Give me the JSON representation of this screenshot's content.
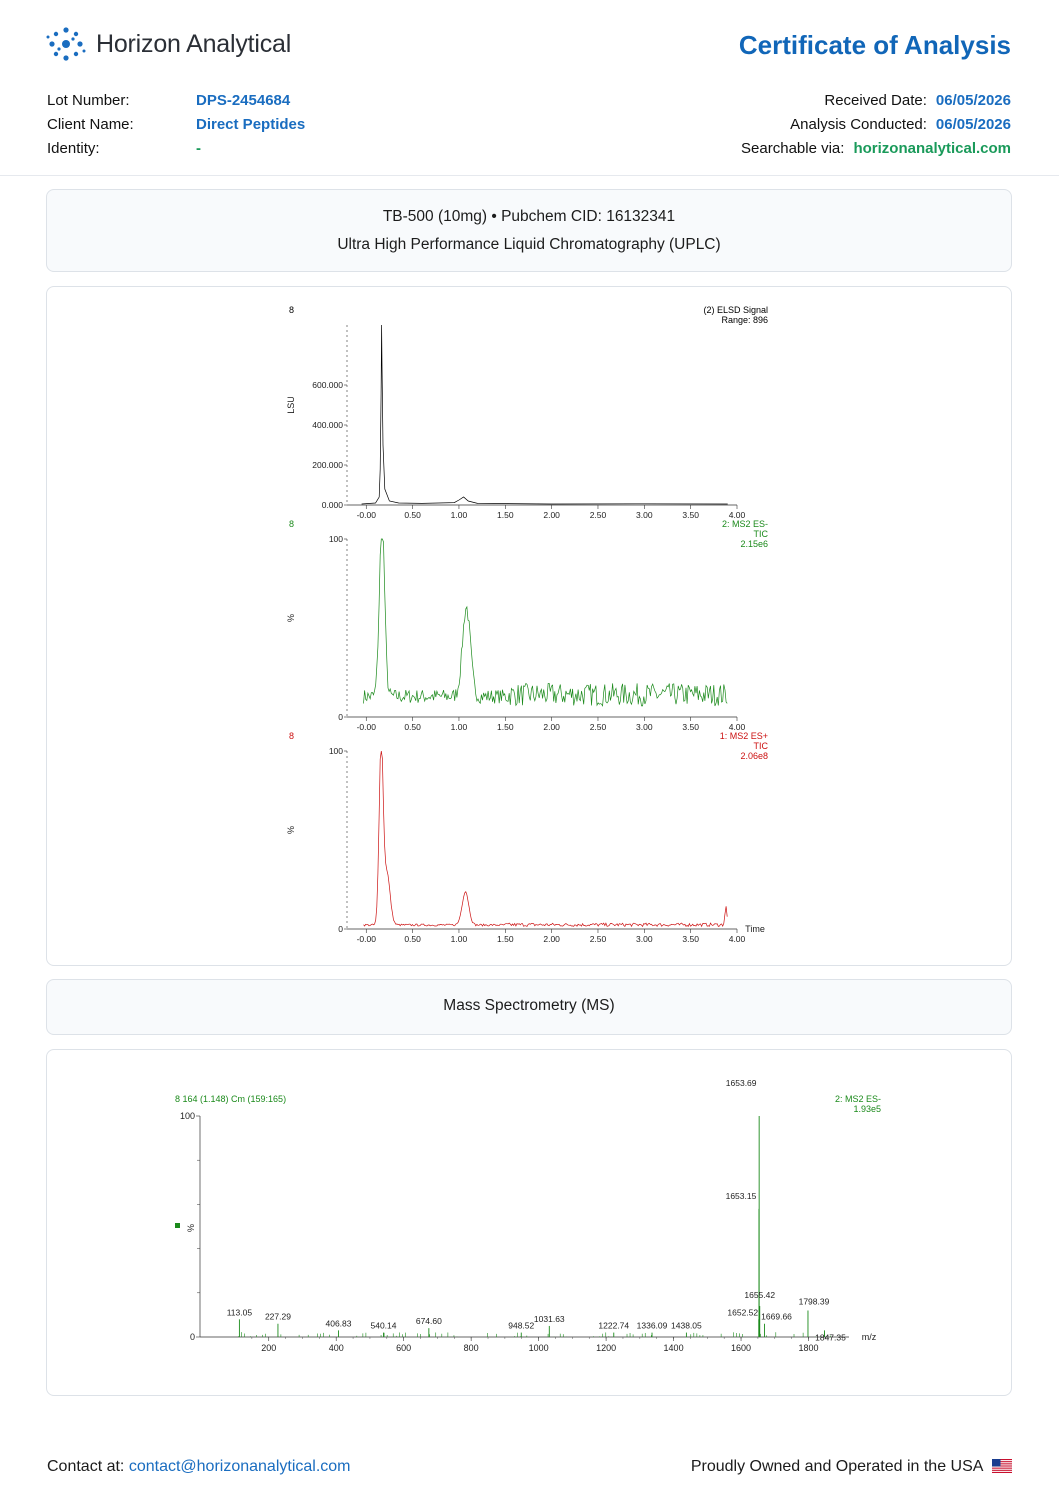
{
  "brand": {
    "name": "Horizon Analytical",
    "logo_icon": "dots-logo-icon"
  },
  "document": {
    "title": "Certificate of Analysis"
  },
  "meta_left": [
    {
      "label": "Lot Number:",
      "value": "DPS-2454684"
    },
    {
      "label": "Client Name:",
      "value": "Direct Peptides"
    },
    {
      "label": "Identity:",
      "value": "-"
    }
  ],
  "meta_right": [
    {
      "label": "Received Date:",
      "value": "06/05/2026"
    },
    {
      "label": "Analysis Conducted:",
      "value": "06/05/2026"
    },
    {
      "label": "Searchable via:",
      "value": "horizonanalytical.com"
    }
  ],
  "uplc_section": {
    "line1": "TB-500 (10mg) • Pubchem CID: 16132341",
    "line2": "Ultra High Performance Liquid Chromatography (UPLC)"
  },
  "ms_section": {
    "title": "Mass Spectrometry (MS)"
  },
  "colors": {
    "accent": "#1166b8",
    "link": "#1a6dc0",
    "green": "#1a9a5a",
    "elsd": "#000000",
    "ms_neg": "#1b8a1b",
    "ms_pos": "#cc1111"
  },
  "chart_data": [
    {
      "type": "line",
      "corner_label": "8",
      "legend": [
        "(2) ELSD Signal",
        "Range: 896"
      ],
      "ylabel": "LSU",
      "yticks": [
        "0.000",
        "200.000",
        "400.000",
        "600.000"
      ],
      "xticks": [
        "-0.00",
        "0.50",
        "1.00",
        "1.50",
        "2.00",
        "2.50",
        "3.00",
        "3.50",
        "4.00"
      ],
      "xlim": [
        -0.1,
        4.0
      ],
      "ylim": [
        0,
        900
      ],
      "series": [
        {
          "values": [
            [
              -0.05,
              5
            ],
            [
              0.1,
              10
            ],
            [
              0.14,
              40
            ],
            [
              0.15,
              180
            ],
            [
              0.16,
              560
            ],
            [
              0.165,
              900
            ],
            [
              0.17,
              700
            ],
            [
              0.18,
              300
            ],
            [
              0.2,
              80
            ],
            [
              0.25,
              20
            ],
            [
              0.35,
              10
            ],
            [
              0.6,
              8
            ],
            [
              0.95,
              12
            ],
            [
              1.0,
              25
            ],
            [
              1.05,
              40
            ],
            [
              1.1,
              20
            ],
            [
              1.2,
              8
            ],
            [
              2.0,
              5
            ],
            [
              3.0,
              6
            ],
            [
              3.9,
              5
            ]
          ]
        }
      ]
    },
    {
      "type": "line",
      "corner_label": "8",
      "legend": [
        "2: MS2 ES-",
        "TIC",
        "2.15e6"
      ],
      "ylabel": "%",
      "yticks": [
        "0",
        "100"
      ],
      "xticks": [
        "-0.00",
        "0.50",
        "1.00",
        "1.50",
        "2.00",
        "2.50",
        "3.00",
        "3.50",
        "4.00"
      ],
      "xlim": [
        -0.1,
        4.0
      ],
      "ylim": [
        0,
        100
      ],
      "series": [
        {
          "peaks": [
            [
              0.17,
              100,
              0.04
            ],
            [
              1.08,
              50,
              0.06
            ]
          ],
          "baseline": 10,
          "noise": 8
        }
      ]
    },
    {
      "type": "line",
      "corner_label": "8",
      "legend": [
        "1: MS2 ES+",
        "TIC",
        "2.06e8"
      ],
      "ylabel": "%",
      "yticks": [
        "0",
        "100"
      ],
      "xticks": [
        "-0.00",
        "0.50",
        "1.00",
        "1.50",
        "2.00",
        "2.50",
        "3.00",
        "3.50",
        "4.00"
      ],
      "xlabel": "Time",
      "xlim": [
        -0.1,
        4.0
      ],
      "ylim": [
        0,
        100
      ],
      "series": [
        {
          "peaks": [
            [
              0.16,
              100,
              0.03
            ],
            [
              0.22,
              30,
              0.05
            ],
            [
              1.07,
              19,
              0.05
            ],
            [
              3.88,
              10,
              0.015
            ]
          ],
          "baseline": 2,
          "noise": 1.2
        }
      ]
    },
    {
      "type": "bar",
      "title": "8 164 (1.148) Cm (159:165)",
      "legend": [
        "2: MS2 ES-",
        "1.93e5"
      ],
      "ylabel": "%",
      "yticks": [
        "0",
        "100"
      ],
      "xticks": [
        "200",
        "400",
        "600",
        "800",
        "1000",
        "1200",
        "1400",
        "1600",
        "1800"
      ],
      "xlabel": "m/z",
      "xlim": [
        100,
        1920
      ],
      "ylim": [
        0,
        100
      ],
      "peaks": [
        {
          "mz": 113.05,
          "value": 8,
          "label": "113.05"
        },
        {
          "mz": 227.29,
          "value": 6,
          "label": "227.29"
        },
        {
          "mz": 406.83,
          "value": 3,
          "label": "406.83"
        },
        {
          "mz": 540.14,
          "value": 2,
          "label": "540.14"
        },
        {
          "mz": 674.6,
          "value": 4,
          "label": "674.60"
        },
        {
          "mz": 948.52,
          "value": 2,
          "label": "948.52"
        },
        {
          "mz": 1031.63,
          "value": 5,
          "label": "1031.63"
        },
        {
          "mz": 1222.74,
          "value": 2,
          "label": "1222.74"
        },
        {
          "mz": 1336.09,
          "value": 2,
          "label": "1336.09"
        },
        {
          "mz": 1438.05,
          "value": 2,
          "label": "1438.05"
        },
        {
          "mz": 1652.52,
          "value": 8,
          "label": "1652.52"
        },
        {
          "mz": 1653.15,
          "value": 58,
          "label": "1653.15"
        },
        {
          "mz": 1653.69,
          "value": 100,
          "label": "1653.69"
        },
        {
          "mz": 1655.42,
          "value": 14,
          "label": "1655.42"
        },
        {
          "mz": 1669.66,
          "value": 6,
          "label": "1669.66"
        },
        {
          "mz": 1798.39,
          "value": 12,
          "label": "1798.39"
        },
        {
          "mz": 1847.35,
          "value": 3,
          "label": "1847.35"
        }
      ]
    }
  ],
  "footer": {
    "contact_label": "Contact at:",
    "contact_email": "contact@horizonanalytical.com",
    "tagline": "Proudly Owned and Operated in the USA",
    "flag_icon": "us-flag-icon"
  }
}
